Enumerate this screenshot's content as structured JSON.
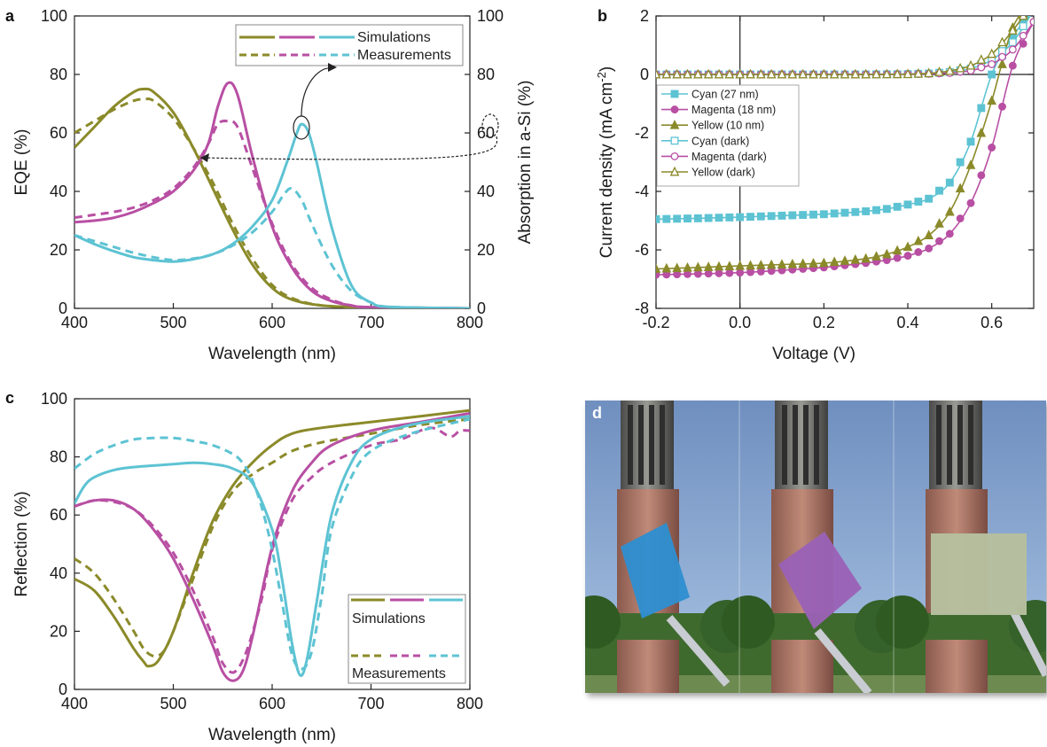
{
  "chart_data": [
    {
      "panel": "a",
      "type": "line",
      "xlabel": "Wavelength (nm)",
      "ylabel": "EQE (%)",
      "ylabel_right": "Absorption in a-Si (%)",
      "xlim": [
        400,
        800
      ],
      "ylim": [
        0,
        100
      ],
      "xticks": [
        400,
        500,
        600,
        700,
        800
      ],
      "yticks": [
        0,
        20,
        40,
        60,
        80,
        100
      ],
      "legend": {
        "simulations": "Simulations",
        "measurements": "Measurements",
        "placement": "top-right"
      },
      "colors": {
        "yellow": "#8b8a2a",
        "magenta": "#b84fa3",
        "cyan": "#5dc3d3"
      },
      "series": [
        {
          "color": "yellow",
          "style": "solid",
          "x": [
            400,
            420,
            440,
            460,
            470,
            480,
            500,
            520,
            540,
            560,
            580,
            600,
            620,
            650,
            700,
            800
          ],
          "y": [
            55,
            62,
            69,
            74,
            75,
            74,
            67,
            55,
            41,
            27,
            15,
            7,
            3,
            1,
            0.3,
            0
          ]
        },
        {
          "color": "yellow",
          "style": "dashed",
          "x": [
            400,
            420,
            440,
            460,
            470,
            480,
            500,
            520,
            540,
            560,
            580,
            600,
            620,
            650,
            700,
            800
          ],
          "y": [
            60,
            64,
            68,
            71,
            71.5,
            71,
            65,
            55,
            43,
            29,
            17,
            8,
            3.5,
            1,
            0.3,
            0
          ]
        },
        {
          "color": "magenta",
          "style": "solid",
          "x": [
            400,
            420,
            440,
            460,
            480,
            500,
            520,
            535,
            545,
            555,
            565,
            580,
            600,
            620,
            640,
            660,
            680,
            700,
            800
          ],
          "y": [
            29.5,
            30,
            31,
            33,
            36,
            40,
            47,
            56,
            69,
            77,
            73,
            52,
            28,
            14,
            6,
            2.5,
            1,
            0.4,
            0
          ]
        },
        {
          "color": "magenta",
          "style": "dashed",
          "x": [
            400,
            420,
            440,
            460,
            480,
            500,
            520,
            535,
            545,
            555,
            565,
            580,
            600,
            620,
            640,
            660,
            680,
            700,
            800
          ],
          "y": [
            31,
            32,
            33,
            34.5,
            37,
            41,
            48,
            56,
            63,
            64,
            62,
            48,
            29,
            15,
            7,
            3,
            1,
            0.4,
            0
          ]
        },
        {
          "color": "cyan",
          "style": "solid",
          "x": [
            400,
            420,
            440,
            460,
            480,
            500,
            520,
            540,
            560,
            580,
            600,
            615,
            625,
            630,
            637,
            645,
            660,
            680,
            700,
            720,
            800
          ],
          "y": [
            25,
            22,
            19.5,
            17.5,
            16.5,
            16,
            16.8,
            18.5,
            22,
            28,
            37,
            50,
            60,
            63,
            60,
            50,
            28,
            8,
            2,
            0.5,
            0
          ]
        },
        {
          "color": "cyan",
          "style": "dashed",
          "x": [
            400,
            420,
            440,
            460,
            480,
            500,
            520,
            540,
            560,
            580,
            600,
            612,
            620,
            630,
            640,
            660,
            680,
            700,
            720,
            800
          ],
          "y": [
            25,
            23,
            21,
            19,
            17.5,
            16.5,
            17,
            18.5,
            21.5,
            26,
            33,
            39,
            41,
            37,
            29,
            15,
            6,
            2,
            0.5,
            0
          ]
        }
      ],
      "annotations": [
        {
          "near": "magenta measured peak",
          "arrow": "toward left axis"
        },
        {
          "near": "cyan simulated peak",
          "arrow": "toward right axis"
        }
      ]
    },
    {
      "panel": "b",
      "type": "line",
      "xlabel": "Voltage (V)",
      "ylabel": "Current density (mA cm-2)",
      "xlim": [
        -0.2,
        0.7
      ],
      "ylim": [
        -8,
        2
      ],
      "xticks": [
        -0.2,
        0.0,
        0.2,
        0.4,
        0.6
      ],
      "xtick_labels": [
        "-0.2",
        "0.0",
        "0.2",
        "0.4",
        "0.6"
      ],
      "yticks": [
        -8,
        -6,
        -4,
        -2,
        0,
        2
      ],
      "legend_placement": "upper-left",
      "series": [
        {
          "name": "Cyan (27 nm)",
          "color": "cyan",
          "marker": "filled-square",
          "x": [
            -0.2,
            -0.1,
            0,
            0.1,
            0.2,
            0.3,
            0.35,
            0.4,
            0.45,
            0.5,
            0.55,
            0.6,
            0.65,
            0.7
          ],
          "y": [
            -4.95,
            -4.92,
            -4.88,
            -4.83,
            -4.78,
            -4.68,
            -4.6,
            -4.45,
            -4.25,
            -3.7,
            -2.3,
            0,
            1.3,
            2.2
          ]
        },
        {
          "name": "Magenta (18 nm)",
          "color": "magenta",
          "marker": "filled-circle",
          "x": [
            -0.2,
            -0.1,
            0,
            0.1,
            0.2,
            0.3,
            0.35,
            0.4,
            0.45,
            0.5,
            0.55,
            0.6,
            0.65,
            0.7
          ],
          "y": [
            -6.85,
            -6.82,
            -6.78,
            -6.7,
            -6.6,
            -6.45,
            -6.35,
            -6.2,
            -5.95,
            -5.45,
            -4.4,
            -2.5,
            0.3,
            1.8
          ]
        },
        {
          "name": "Yellow (10 nm)",
          "color": "yellow",
          "marker": "filled-triangle",
          "x": [
            -0.2,
            -0.1,
            0,
            0.1,
            0.2,
            0.3,
            0.35,
            0.4,
            0.45,
            0.5,
            0.55,
            0.6,
            0.65,
            0.7
          ],
          "y": [
            -6.65,
            -6.6,
            -6.55,
            -6.5,
            -6.45,
            -6.3,
            -6.15,
            -5.9,
            -5.5,
            -4.7,
            -3.1,
            -0.9,
            1.6,
            2.5
          ]
        },
        {
          "name": "Cyan (dark)",
          "color": "cyan",
          "marker": "open-square",
          "x": [
            -0.2,
            -0.1,
            0,
            0.1,
            0.2,
            0.3,
            0.4,
            0.45,
            0.5,
            0.55,
            0.6,
            0.65,
            0.7
          ],
          "y": [
            0,
            0,
            0,
            0,
            0,
            0,
            0.01,
            0.03,
            0.08,
            0.2,
            0.5,
            1.1,
            2.2
          ]
        },
        {
          "name": "Magenta (dark)",
          "color": "magenta",
          "marker": "open-circle",
          "x": [
            -0.2,
            -0.1,
            0,
            0.1,
            0.2,
            0.3,
            0.4,
            0.45,
            0.5,
            0.55,
            0.6,
            0.65,
            0.7
          ],
          "y": [
            0,
            0,
            0,
            0,
            0,
            0,
            0.01,
            0.02,
            0.05,
            0.13,
            0.35,
            0.85,
            1.8
          ]
        },
        {
          "name": "Yellow (dark)",
          "color": "yellow",
          "marker": "open-triangle",
          "x": [
            -0.2,
            -0.1,
            0,
            0.1,
            0.2,
            0.3,
            0.4,
            0.45,
            0.5,
            0.55,
            0.6,
            0.65,
            0.7
          ],
          "y": [
            0,
            0,
            0,
            0,
            0,
            0,
            0.01,
            0.04,
            0.12,
            0.3,
            0.7,
            1.5,
            2.5
          ]
        }
      ]
    },
    {
      "panel": "c",
      "type": "line",
      "xlabel": "Wavelength (nm)",
      "ylabel": "Reflection (%)",
      "xlim": [
        400,
        800
      ],
      "ylim": [
        0,
        100
      ],
      "xticks": [
        400,
        500,
        600,
        700,
        800
      ],
      "yticks": [
        0,
        20,
        40,
        60,
        80,
        100
      ],
      "legend": {
        "simulations": "Simulations",
        "measurements": "Measurements",
        "placement": "bottom-right"
      },
      "series": [
        {
          "color": "yellow",
          "style": "solid",
          "x": [
            400,
            420,
            440,
            460,
            470,
            475,
            485,
            500,
            520,
            540,
            560,
            580,
            600,
            620,
            650,
            700,
            750,
            800
          ],
          "y": [
            38,
            34,
            25,
            14,
            9.5,
            8,
            10,
            20,
            40,
            58,
            70,
            78,
            84,
            88,
            90,
            92,
            94,
            96
          ]
        },
        {
          "color": "yellow",
          "style": "dashed",
          "x": [
            400,
            420,
            440,
            460,
            470,
            480,
            490,
            500,
            520,
            540,
            560,
            580,
            600,
            620,
            650,
            700,
            750,
            800
          ],
          "y": [
            45,
            40,
            31,
            20,
            14,
            11.5,
            13,
            20,
            38,
            56,
            68,
            74,
            78,
            82,
            85,
            88,
            91,
            93
          ]
        },
        {
          "color": "magenta",
          "style": "solid",
          "x": [
            400,
            420,
            440,
            460,
            480,
            500,
            520,
            540,
            550,
            560,
            570,
            580,
            600,
            620,
            640,
            660,
            700,
            750,
            800
          ],
          "y": [
            63,
            65,
            65,
            62,
            55,
            45,
            31,
            15,
            6,
            3,
            6,
            18,
            49,
            68,
            78,
            84,
            89,
            92,
            95
          ]
        },
        {
          "color": "magenta",
          "style": "dashed",
          "x": [
            400,
            420,
            440,
            460,
            480,
            500,
            520,
            540,
            550,
            562,
            575,
            590,
            600,
            620,
            640,
            660,
            700,
            730,
            760,
            780,
            790,
            800
          ],
          "y": [
            63,
            65,
            64.5,
            62,
            56,
            47,
            34,
            18,
            9,
            6,
            14,
            32,
            48,
            65,
            73,
            78,
            84,
            86,
            90,
            87,
            89,
            89
          ]
        },
        {
          "color": "cyan",
          "style": "solid",
          "x": [
            400,
            410,
            420,
            440,
            460,
            480,
            500,
            520,
            540,
            560,
            580,
            600,
            610,
            620,
            628,
            635,
            645,
            660,
            680,
            700,
            740,
            800
          ],
          "y": [
            64,
            70,
            73,
            75.5,
            76.5,
            77,
            77.5,
            78,
            77.5,
            76,
            71,
            55,
            38,
            16,
            5,
            10,
            30,
            60,
            78,
            86,
            91,
            94
          ]
        },
        {
          "color": "cyan",
          "style": "dashed",
          "x": [
            400,
            420,
            440,
            460,
            480,
            500,
            520,
            540,
            560,
            570,
            580,
            590,
            600,
            610,
            620,
            630,
            640,
            650,
            660,
            680,
            700,
            740,
            800
          ],
          "y": [
            76,
            81,
            84,
            86,
            86.5,
            86.5,
            85.5,
            84,
            81,
            78,
            72,
            62,
            48,
            30,
            12,
            7,
            13,
            32,
            55,
            73,
            82,
            88,
            93
          ]
        }
      ]
    },
    {
      "panel": "d",
      "type": "photo",
      "content": "Three photographs of a tall brick tower against a blue sky, each with a colored square solar cell (cyan, magenta, yellowish-green) held on a rod in the foreground"
    }
  ]
}
